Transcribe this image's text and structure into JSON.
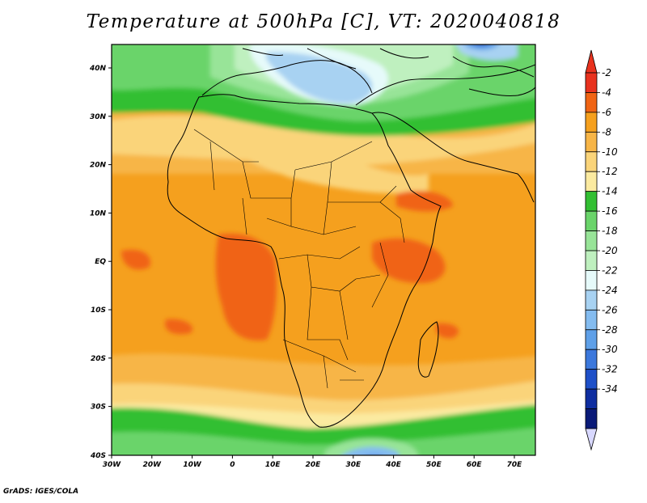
{
  "title": "Temperature at 500hPa [C], VT: 2020040818",
  "credit": "GrADS: IGES/COLA",
  "map": {
    "lon_ticks": [
      "30W",
      "20W",
      "10W",
      "0",
      "10E",
      "20E",
      "30E",
      "40E",
      "50E",
      "60E",
      "70E"
    ],
    "lat_ticks": [
      "40N",
      "30N",
      "20N",
      "10N",
      "EQ",
      "10S",
      "20S",
      "30S",
      "40S"
    ]
  },
  "colorbar": {
    "labels": [
      "-2",
      "-4",
      "-6",
      "-8",
      "-10",
      "-12",
      "-14",
      "-16",
      "-18",
      "-20",
      "-22",
      "-24",
      "-26",
      "-28",
      "-30",
      "-32",
      "-34"
    ],
    "colors": [
      "#e8321e",
      "#f06414",
      "#f5a01e",
      "#f7b547",
      "#fad47a",
      "#fbeaa0",
      "#33bf33",
      "#6ad46a",
      "#98e498",
      "#bff0bf",
      "#e6fafa",
      "#a8d2f2",
      "#84bcf0",
      "#5fa0e8",
      "#3c78dc",
      "#1e50c8",
      "#0f2ea0",
      "#0a1a78"
    ],
    "top_arrow_color": "#e8321e",
    "bottom_arrow_color": "#d8d8ff"
  }
}
